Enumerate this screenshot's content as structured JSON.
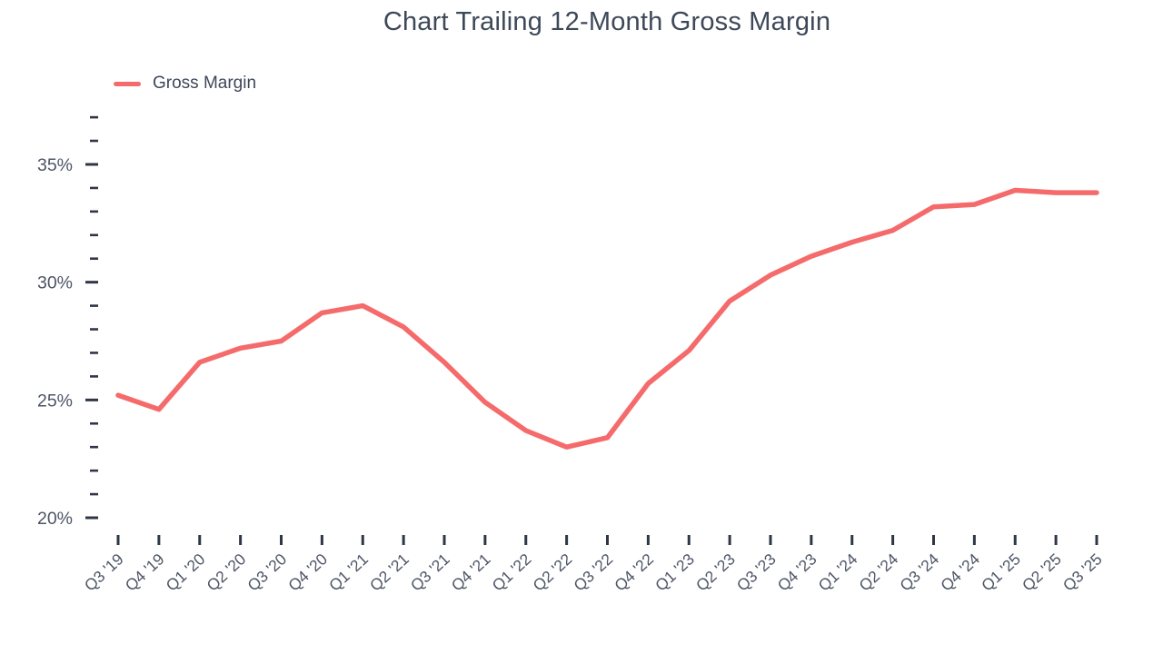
{
  "page": {
    "background": "#FFFFFF"
  },
  "chart_data": {
    "type": "line",
    "title": "Chart Trailing 12-Month Gross Margin",
    "categories": [
      "Q3 '19",
      "Q4 '19",
      "Q1 '20",
      "Q2 '20",
      "Q3 '20",
      "Q4 '20",
      "Q1 '21",
      "Q2 '21",
      "Q3 '21",
      "Q4 '21",
      "Q1 '22",
      "Q2 '22",
      "Q3 '22",
      "Q4 '22",
      "Q1 '23",
      "Q2 '23",
      "Q3 '23",
      "Q4 '23",
      "Q1 '24",
      "Q2 '24",
      "Q3 '24",
      "Q4 '24",
      "Q1 '25",
      "Q2 '25",
      "Q3 '25"
    ],
    "series": [
      {
        "name": "Gross Margin",
        "color": "#F56B6B",
        "values": [
          25.2,
          24.6,
          26.6,
          27.2,
          27.5,
          28.7,
          29.0,
          28.1,
          26.6,
          24.9,
          23.7,
          23.0,
          23.4,
          25.7,
          27.1,
          29.2,
          30.3,
          31.1,
          31.7,
          32.2,
          33.2,
          33.3,
          33.9,
          33.8,
          33.8
        ]
      }
    ],
    "xlabel": "",
    "ylabel": "",
    "y_axis": {
      "min": 20,
      "max": 37,
      "major_ticks": [
        20,
        25,
        30,
        35
      ],
      "minor_tick_step": 1,
      "tick_suffix": "%"
    },
    "x_axis": {
      "label_rotation": -43,
      "tick_per_category": true
    },
    "legend": {
      "position": "top-left",
      "entries": [
        "Gross Margin"
      ]
    },
    "grid": false,
    "colors": {
      "line": "#F56B6B",
      "title_text": "#3E4859",
      "axis_text": "#4D5566",
      "tick_mark": "#2F3745"
    }
  }
}
